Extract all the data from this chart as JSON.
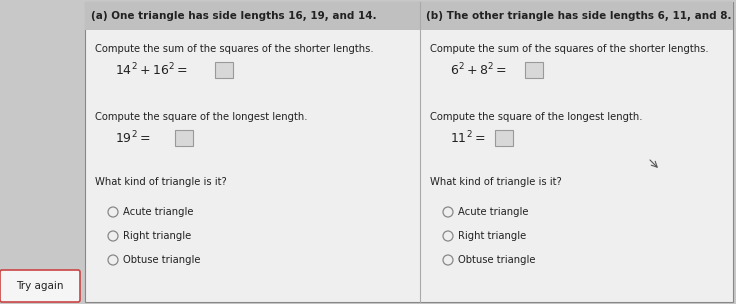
{
  "bg_color": "#c8c8c8",
  "panel_bg": "#efefef",
  "title_a_bg": "#c8c8c8",
  "title_b_bg": "#c8c8c8",
  "title_a": "(a) One triangle has side lengths 16, 19, and 14.",
  "title_b": "(b) The other triangle has side lengths 6, 11, and 8.",
  "step1a_label": "Compute the sum of the squares of the shorter lengths.",
  "step1a_math_left": "$14^2 + 16^2 = $",
  "step2a_label": "Compute the square of the longest length.",
  "step2a_math": "$19^2 = $",
  "step3a_label": "What kind of triangle is it?",
  "options_a": [
    "Acute triangle",
    "Right triangle",
    "Obtuse triangle"
  ],
  "step1b_label": "Compute the sum of the squares of the shorter lengths.",
  "step1b_math": "$6^2 + 8^2 = $",
  "step2b_label": "Compute the square of the longest length.",
  "step2b_math": "$11^2 = $",
  "step3b_label": "What kind of triangle is it?",
  "options_b": [
    "Acute triangle",
    "Right triangle",
    "Obtuse triangle"
  ],
  "try_again": "Try again",
  "text_color": "#222222",
  "title_fontsize": 7.5,
  "body_fontsize": 7.2,
  "math_fontsize": 9.0,
  "answer_box_color": "#d8d8d8",
  "answer_box_edge": "#999999",
  "circle_edge": "#888888",
  "divider_color": "#aaaaaa",
  "border_color": "#888888",
  "try_again_border": "#cc4444",
  "try_again_bg": "#f5f5f5"
}
